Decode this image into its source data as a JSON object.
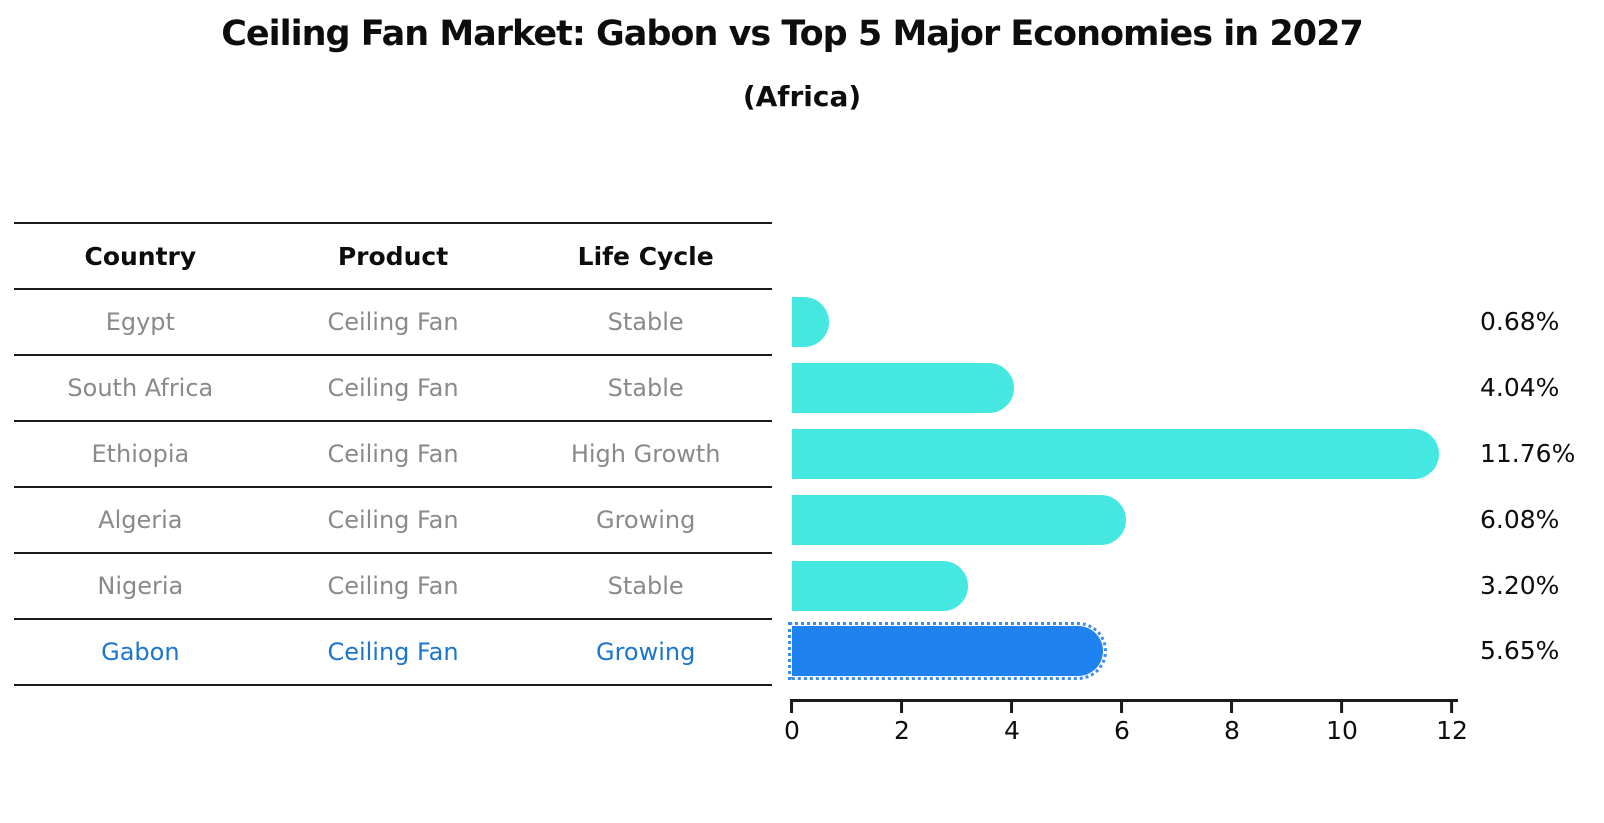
{
  "title": "Ceiling Fan Market: Gabon vs Top 5 Major Economies in 2027",
  "subtitle": "(Africa)",
  "table": {
    "headers": [
      "Country",
      "Product",
      "Life Cycle"
    ],
    "rows": [
      {
        "country": "Egypt",
        "product": "Ceiling Fan",
        "life_cycle": "Stable",
        "highlighted": false
      },
      {
        "country": "South Africa",
        "product": "Ceiling Fan",
        "life_cycle": "Stable",
        "highlighted": false
      },
      {
        "country": "Ethiopia",
        "product": "Ceiling Fan",
        "life_cycle": "High Growth",
        "highlighted": false
      },
      {
        "country": "Algeria",
        "product": "Ceiling Fan",
        "life_cycle": "Growing",
        "highlighted": false
      },
      {
        "country": "Nigeria",
        "product": "Ceiling Fan",
        "life_cycle": "Stable",
        "highlighted": false
      },
      {
        "country": "Gabon",
        "product": "Ceiling Fan",
        "life_cycle": "Growing",
        "highlighted": true
      }
    ]
  },
  "chart_data": {
    "type": "bar",
    "orientation": "horizontal",
    "title": "Ceiling Fan Market: Gabon vs Top 5 Major Economies in 2027",
    "subtitle": "(Africa)",
    "categories": [
      "Egypt",
      "South Africa",
      "Ethiopia",
      "Algeria",
      "Nigeria",
      "Gabon"
    ],
    "values": [
      0.68,
      4.04,
      11.76,
      6.08,
      3.2,
      5.65
    ],
    "value_labels": [
      "0.68%",
      "4.04%",
      "11.76%",
      "6.08%",
      "3.20%",
      "5.65%"
    ],
    "xticks": [
      0,
      2,
      4,
      6,
      8,
      10,
      12
    ],
    "xlim": [
      0,
      12.1
    ],
    "grid": false,
    "legend": false,
    "highlight_index": 5
  },
  "colors": {
    "bar_color": "#45e8e0",
    "highlight_bar_color": "#1e82f0",
    "highlight_outline_color": "#3b8bf0",
    "highlight_text": "#1b76cf",
    "table_text": "#8a8a8a",
    "axis": "#1a1a1a"
  }
}
